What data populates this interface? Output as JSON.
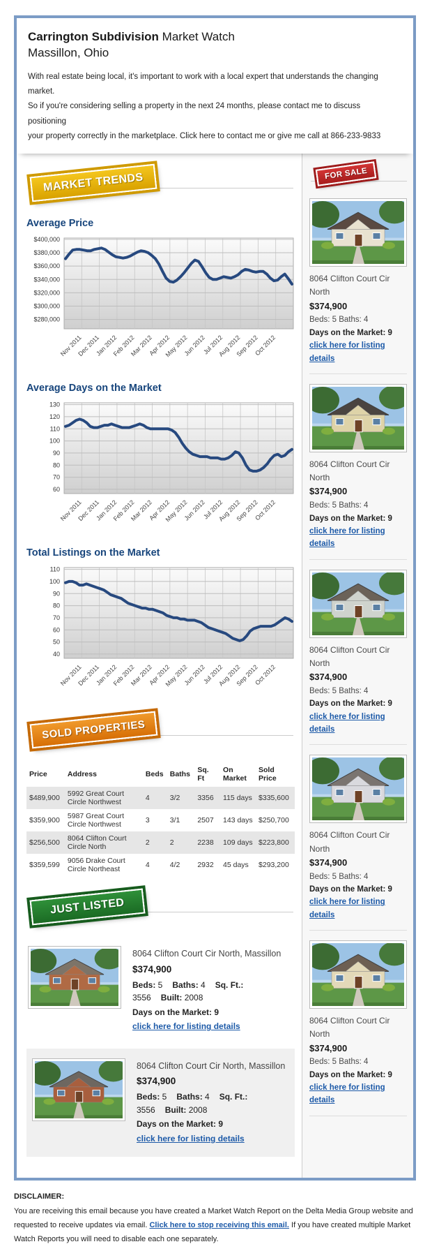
{
  "header": {
    "title_bold": "Carrington Subdivision",
    "title_rest": " Market Watch",
    "subtitle": "Massillon, Ohio",
    "intro_lines": [
      "With real estate being local, it's important to work with a local expert that understands the changing market.",
      "So if you're considering selling a property in the next 24 months, please contact me to discuss positioning",
      "your property correctly in the marketplace. Click here to contact me or give me call at 866-233-9833"
    ]
  },
  "badges": {
    "market_trends": "MARKET TRENDS",
    "sold_properties": "SOLD PROPERTIES",
    "just_listed": "JUST LISTED",
    "for_sale": "FOR SALE"
  },
  "colors": {
    "frame_blue": "#7c9cc6",
    "heading_blue": "#17457c",
    "link_blue": "#1d5aa8",
    "chart_line_navy": "#27497f",
    "badge_yellow": "#eab712",
    "badge_orange": "#e5821f",
    "badge_green": "#27822f",
    "badge_red": "#c52828",
    "sidebar_bg": "#f7f7f7",
    "table_row_shade": "#e6e6e6"
  },
  "chart_data": [
    {
      "type": "line",
      "title": "Average Price",
      "xlabel": "",
      "ylabel": "",
      "x_labels": [
        "Nov 2011",
        "Dec 2011",
        "Jan 2012",
        "Feb 2012",
        "Mar 2012",
        "Apr 2012",
        "May 2012",
        "Jun 2012",
        "Jul 2012",
        "Aug 2012",
        "Sep 2012",
        "Oct 2012"
      ],
      "ylim": [
        266000,
        402000
      ],
      "yticks": [
        280000,
        300000,
        320000,
        340000,
        360000,
        380000,
        400000
      ],
      "ytick_labels": [
        "$280,000",
        "$300,000",
        "$320,000",
        "$340,000",
        "$360,000",
        "$380,000",
        "$400,000"
      ],
      "grid": true,
      "values": [
        371000,
        378000,
        384000,
        385000,
        385000,
        384000,
        383000,
        383000,
        385000,
        386000,
        387000,
        385000,
        381000,
        377000,
        374000,
        373000,
        372000,
        373000,
        375000,
        378000,
        381000,
        383000,
        382000,
        380000,
        376000,
        371000,
        363000,
        352000,
        342000,
        337000,
        336000,
        339000,
        344000,
        350000,
        357000,
        364000,
        369000,
        367000,
        359000,
        350000,
        343000,
        340000,
        340000,
        342000,
        344000,
        343000,
        342000,
        344000,
        347000,
        352000,
        355000,
        354000,
        352000,
        351000,
        352000,
        352000,
        348000,
        342000,
        338000,
        339000,
        344000,
        348000,
        341000,
        333000
      ]
    },
    {
      "type": "line",
      "title": "Average Days on the Market",
      "xlabel": "",
      "ylabel": "",
      "x_labels": [
        "Nov 2011",
        "Dec 2011",
        "Jan 2012",
        "Feb 2012",
        "Mar 2012",
        "Apr 2012",
        "May 2012",
        "Jun 2012",
        "Jul 2012",
        "Aug 2012",
        "Sep 2012",
        "Oct 2012"
      ],
      "ylim": [
        56.5,
        131.5
      ],
      "yticks": [
        60,
        70,
        80,
        90,
        100,
        110,
        120,
        130
      ],
      "ytick_labels": [
        "60",
        "70",
        "80",
        "90",
        "100",
        "110",
        "120",
        "130"
      ],
      "grid": true,
      "values": [
        112,
        113,
        115,
        117,
        118,
        117,
        115,
        112,
        111,
        111,
        112,
        113,
        113,
        114,
        113,
        112,
        111,
        111,
        111,
        112,
        113,
        114,
        113,
        111,
        110,
        110,
        110,
        110,
        110,
        110,
        109,
        107,
        103,
        98,
        94,
        91,
        89,
        88,
        87,
        87,
        87,
        86,
        86,
        86,
        85,
        85,
        86,
        88,
        91,
        90,
        86,
        80,
        76,
        75,
        75,
        76,
        78,
        81,
        85,
        88,
        89,
        87,
        88,
        91,
        93
      ]
    },
    {
      "type": "line",
      "title": "Total Listings on the Market",
      "xlabel": "",
      "ylabel": "",
      "x_labels": [
        "Nov 2011",
        "Dec 2011",
        "Jan 2012",
        "Feb 2012",
        "Mar 2012",
        "Apr 2012",
        "May 2012",
        "Jun 2012",
        "Jul 2012",
        "Aug 2012",
        "Sep 2012",
        "Oct 2012"
      ],
      "ylim": [
        36.5,
        111.5
      ],
      "yticks": [
        40,
        50,
        60,
        70,
        80,
        90,
        100,
        110
      ],
      "ytick_labels": [
        "40",
        "50",
        "60",
        "70",
        "80",
        "90",
        "100",
        "110"
      ],
      "grid": true,
      "values": [
        99,
        100,
        100,
        99,
        97,
        97,
        98,
        97,
        96,
        95,
        94,
        93,
        91,
        89,
        88,
        87,
        86,
        84,
        82,
        81,
        80,
        79,
        78,
        78,
        77,
        77,
        76,
        75,
        74,
        72,
        71,
        70,
        70,
        69,
        69,
        68,
        68,
        68,
        67,
        66,
        64,
        62,
        61,
        60,
        59,
        58,
        57,
        55,
        53,
        52,
        51,
        52,
        55,
        59,
        61,
        62,
        63,
        63,
        63,
        63,
        64,
        66,
        68,
        70,
        69,
        67
      ]
    }
  ],
  "sold_table": {
    "headers": [
      "Price",
      "Address",
      "Beds",
      "Baths",
      "Sq. Ft",
      "On Market",
      "Sold Price"
    ],
    "rows": [
      [
        "$489,900",
        "5992 Great Court Circle Northwest",
        "4",
        "3/2",
        "3356",
        "115 days",
        "$335,600"
      ],
      [
        "$359,900",
        "5987 Great Court Circle Northwest",
        "3",
        "3/1",
        "2507",
        "143 days",
        "$250,700"
      ],
      [
        "$256,500",
        "8064 Clifton Court Circle North",
        "2",
        "2",
        "2238",
        "109 days",
        "$223,800"
      ],
      [
        "$359,599",
        "9056 Drake Court Circle Northeast",
        "4",
        "4/2",
        "2932",
        "45 days",
        "$293,200"
      ]
    ]
  },
  "for_sale": {
    "listings": [
      {
        "address": "8064 Clifton Court Cir North",
        "price": "$374,900",
        "beds_baths": "Beds: 5 Baths: 4",
        "days": "Days on the Market: 9",
        "link": "click here for listing details",
        "photo": {
          "wall": "#e8e2d0",
          "roof": "#5a4a42"
        }
      },
      {
        "address": "8064 Clifton Court Cir North",
        "price": "$374,900",
        "beds_baths": "Beds: 5 Baths: 4",
        "days": "Days on the Market: 9",
        "link": "click here for listing details",
        "photo": {
          "wall": "#ded3a8",
          "roof": "#4a4440"
        }
      },
      {
        "address": "8064 Clifton Court Cir North",
        "price": "$374,900",
        "beds_baths": "Beds: 5 Baths: 4",
        "days": "Days on the Market: 9",
        "link": "click here for listing details",
        "photo": {
          "wall": "#cfd3cd",
          "roof": "#6b6258"
        }
      },
      {
        "address": "8064 Clifton Court Cir North",
        "price": "$374,900",
        "beds_baths": "Beds: 5 Baths: 4",
        "days": "Days on the Market: 9",
        "link": "click here for listing details",
        "photo": {
          "wall": "#d9d9de",
          "roof": "#7a7470"
        }
      },
      {
        "address": "8064 Clifton Court Cir North",
        "price": "$374,900",
        "beds_baths": "Beds: 5 Baths: 4",
        "days": "Days on the Market: 9",
        "link": "click here for listing details",
        "photo": {
          "wall": "#e3d9b8",
          "roof": "#6d5f52"
        }
      }
    ]
  },
  "just_listed": {
    "listings": [
      {
        "address": "8064 Clifton Court Cir North, Massillon",
        "price": "$374,900",
        "specs": [
          {
            "label": "Beds:",
            "value": " 5"
          },
          {
            "label": "Baths:",
            "value": " 4"
          },
          {
            "label": "Sq. Ft.:",
            "value": " 3556"
          },
          {
            "label": "Built:",
            "value": " 2008"
          }
        ],
        "days": "Days on the Market: 9",
        "link": "click here for listing details",
        "photo": {
          "wall": "#b06a44",
          "roof": "#7d7468"
        }
      },
      {
        "address": "8064 Clifton Court Cir North, Massillon",
        "price": "$374,900",
        "specs": [
          {
            "label": "Beds:",
            "value": " 5"
          },
          {
            "label": "Baths:",
            "value": " 4"
          },
          {
            "label": "Sq. Ft.:",
            "value": " 3556"
          },
          {
            "label": "Built:",
            "value": " 2008"
          }
        ],
        "days": "Days on the Market: 9",
        "link": "click here for listing details",
        "photo": {
          "wall": "#a85f3e",
          "roof": "#6d6760"
        }
      }
    ]
  },
  "disclaimer": {
    "title": "DISCLAIMER:",
    "before": "You are receiving this email because you have created a Market Watch Report on the Delta Media Group website and requested to receive updates via email. ",
    "link": "Click here to stop receiving this email.",
    "after": " If you have created multiple Market Watch Reports you will need to disable each one separately."
  }
}
